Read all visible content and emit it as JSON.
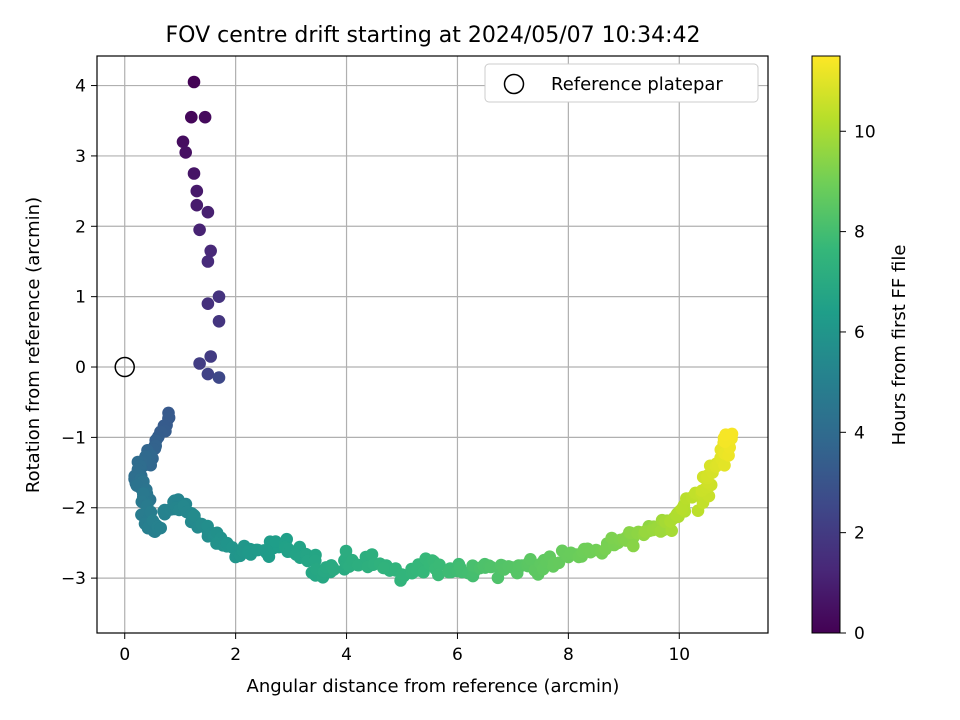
{
  "chart_data": {
    "type": "scatter",
    "title": "FOV centre drift starting at 2024/05/07 10:34:42",
    "xlabel": "Angular distance from reference (arcmin)",
    "ylabel": "Rotation from reference (arcmin)",
    "xlim": [
      -0.5,
      11.6
    ],
    "ylim": [
      -3.78,
      4.42
    ],
    "xticks": [
      0,
      2,
      4,
      6,
      8,
      10
    ],
    "yticks": [
      -3,
      -2,
      -1,
      0,
      1,
      2,
      3,
      4
    ],
    "grid": true,
    "legend": {
      "placement": "top-right",
      "entries": [
        "Reference platepar"
      ]
    },
    "reference_point": {
      "x": 0,
      "y": 0,
      "label": "Reference platepar"
    },
    "colorbar": {
      "label": "Hours from first FF file",
      "range": [
        0,
        11.5
      ],
      "ticks": [
        0,
        2,
        4,
        6,
        8,
        10
      ],
      "colormap": "viridis"
    },
    "colors": {
      "viridis": [
        "#440154",
        "#482878",
        "#3e4989",
        "#31688e",
        "#26828e",
        "#1f9e89",
        "#35b779",
        "#6ece58",
        "#b5de2b",
        "#fde725"
      ]
    },
    "anchors": [
      [
        1.25,
        4.05,
        0.05
      ],
      [
        1.2,
        3.55,
        0.2
      ],
      [
        1.45,
        3.55,
        0.3
      ],
      [
        1.05,
        3.2,
        0.4
      ],
      [
        1.1,
        3.05,
        0.5
      ],
      [
        1.25,
        2.75,
        0.65
      ],
      [
        1.3,
        2.5,
        0.8
      ],
      [
        1.3,
        2.3,
        0.9
      ],
      [
        1.5,
        2.2,
        1.0
      ],
      [
        1.35,
        1.95,
        1.1
      ],
      [
        1.55,
        1.65,
        1.3
      ],
      [
        1.5,
        1.5,
        1.4
      ],
      [
        1.5,
        0.9,
        1.6
      ],
      [
        1.7,
        1.0,
        1.7
      ],
      [
        1.7,
        0.65,
        1.8
      ],
      [
        1.55,
        0.15,
        2.0
      ],
      [
        1.35,
        0.05,
        2.1
      ],
      [
        1.5,
        -0.1,
        2.3
      ],
      [
        1.7,
        -0.15,
        2.5
      ],
      [
        0.8,
        -0.72,
        3.2
      ],
      [
        0.6,
        -1.0,
        3.4
      ],
      [
        0.5,
        -1.3,
        3.7
      ],
      [
        0.3,
        -1.35,
        4.0
      ],
      [
        0.2,
        -1.65,
        4.2
      ],
      [
        0.4,
        -1.8,
        4.5
      ],
      [
        0.3,
        -2.1,
        4.8
      ],
      [
        0.6,
        -2.3,
        5.0
      ],
      [
        0.9,
        -1.9,
        5.2
      ],
      [
        1.2,
        -2.1,
        5.4
      ],
      [
        1.6,
        -2.4,
        5.7
      ],
      [
        2.0,
        -2.7,
        6.0
      ],
      [
        2.4,
        -2.6,
        6.2
      ],
      [
        2.9,
        -2.5,
        6.5
      ],
      [
        3.3,
        -2.7,
        6.7
      ],
      [
        3.6,
        -2.9,
        6.9
      ],
      [
        4.0,
        -2.7,
        7.1
      ],
      [
        4.5,
        -2.8,
        7.3
      ],
      [
        5.0,
        -2.95,
        7.5
      ],
      [
        5.5,
        -2.8,
        7.7
      ],
      [
        6.0,
        -2.9,
        7.9
      ],
      [
        6.5,
        -2.85,
        8.2
      ],
      [
        7.0,
        -2.85,
        8.4
      ],
      [
        7.5,
        -2.8,
        8.6
      ],
      [
        8.0,
        -2.7,
        8.8
      ],
      [
        8.5,
        -2.6,
        9.0
      ],
      [
        9.0,
        -2.45,
        9.3
      ],
      [
        9.4,
        -2.35,
        9.6
      ],
      [
        9.8,
        -2.2,
        9.9
      ],
      [
        10.1,
        -2.05,
        10.2
      ],
      [
        10.4,
        -1.8,
        10.5
      ],
      [
        10.6,
        -1.5,
        10.8
      ],
      [
        10.8,
        -1.2,
        11.1
      ],
      [
        10.95,
        -0.95,
        11.4
      ]
    ]
  }
}
